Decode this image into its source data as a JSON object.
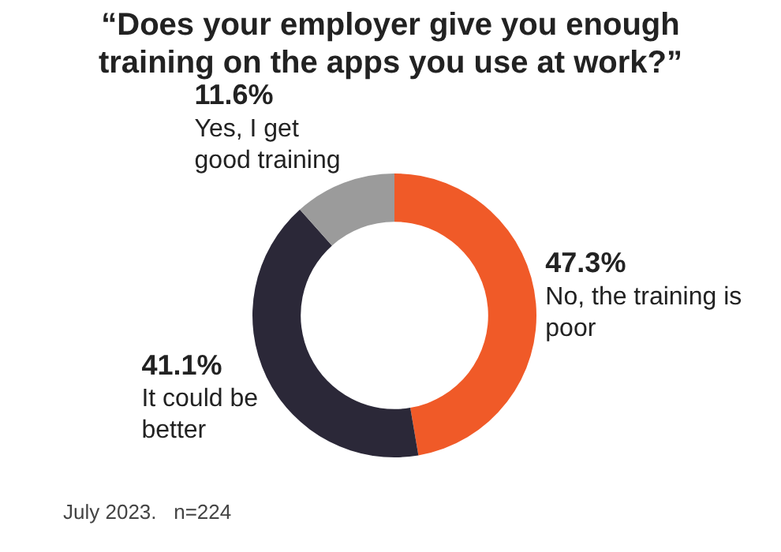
{
  "chart_data": {
    "type": "donut",
    "title": "“Does your employer give you enough training on the apps you use at work?”",
    "categories": [
      "No, the training is poor",
      "It could be better",
      "Yes, I get good training"
    ],
    "values": [
      47.3,
      41.1,
      11.6
    ],
    "colors": [
      "#f05a28",
      "#2b2838",
      "#9b9b9b"
    ],
    "value_labels": [
      "47.3%",
      "41.1%",
      "11.6%"
    ],
    "legend": false,
    "annotations": [
      "July 2023.   n=224"
    ]
  }
}
